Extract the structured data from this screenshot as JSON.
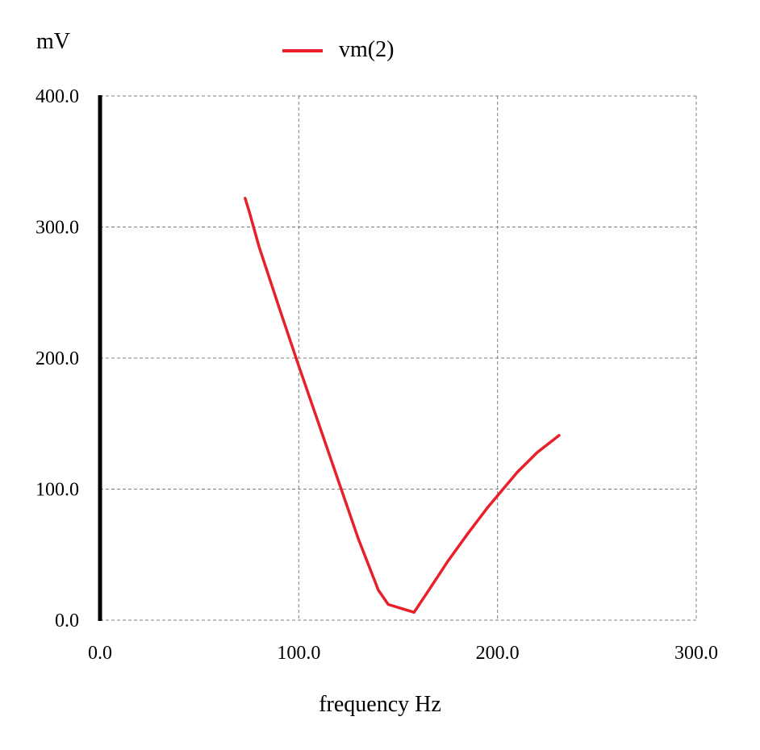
{
  "chart_data": {
    "type": "line",
    "title": "",
    "xlabel": "frequency Hz",
    "ylabel": "mV",
    "xlim": [
      0,
      300
    ],
    "ylim": [
      0,
      400
    ],
    "x_ticks": [
      0,
      100,
      200,
      300
    ],
    "y_ticks": [
      0,
      100,
      200,
      300,
      400
    ],
    "x_tick_labels": [
      "0.0",
      "100.0",
      "200.0",
      "300.0"
    ],
    "y_tick_labels": [
      "0.0",
      "100.0",
      "200.0",
      "300.0",
      "400.0"
    ],
    "grid": true,
    "legend_position": "top",
    "series": [
      {
        "name": "vm(2)",
        "color": "#e8202a",
        "x": [
          73,
          75,
          80,
          90,
          100,
          110,
          120,
          130,
          140,
          145,
          158,
          165,
          175,
          185,
          195,
          200,
          210,
          220,
          231
        ],
        "y": [
          322,
          312,
          285,
          239,
          194,
          150,
          106,
          62,
          23,
          12,
          6,
          22,
          45,
          66,
          86,
          95,
          113,
          128,
          141
        ]
      }
    ]
  }
}
